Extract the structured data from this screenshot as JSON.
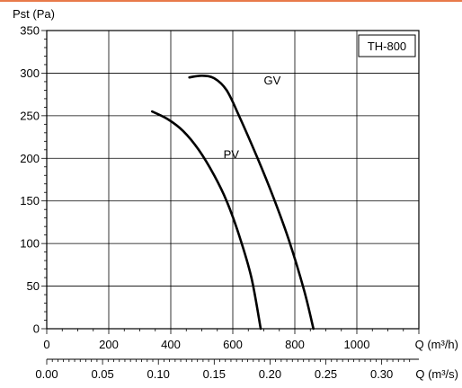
{
  "chart_data": {
    "type": "line",
    "title": "",
    "model_label": "TH-800",
    "ylabel": "Pst (Pa)",
    "ylim": [
      0,
      350
    ],
    "yticks": [
      0,
      50,
      100,
      150,
      200,
      250,
      300,
      350
    ],
    "xlabel": "Q (m³/h)",
    "xlim": [
      0,
      1200
    ],
    "xticks": [
      0,
      200,
      400,
      600,
      800,
      1000
    ],
    "x2label": "Q (m³/s)",
    "x2lim": [
      0.0,
      0.3333
    ],
    "x2ticks": [
      "0.00",
      "0.05",
      "0.10",
      "0.15",
      "0.20",
      "0.25",
      "0.30"
    ],
    "grid": "major",
    "series": [
      {
        "name": "PV",
        "x": [
          340,
          390,
          440,
          490,
          540,
          580,
          620,
          660,
          690
        ],
        "y": [
          255,
          246,
          232,
          210,
          180,
          150,
          110,
          60,
          0
        ]
      },
      {
        "name": "GV",
        "x": [
          460,
          500,
          540,
          580,
          620,
          680,
          730,
          780,
          830,
          860
        ],
        "y": [
          295,
          297,
          294,
          280,
          250,
          200,
          155,
          105,
          45,
          0
        ]
      }
    ]
  }
}
